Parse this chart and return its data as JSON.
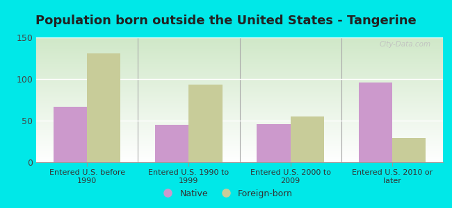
{
  "title": "Population born outside the United States - Tangerine",
  "categories": [
    "Entered U.S. before\n1990",
    "Entered U.S. 1990 to\n1999",
    "Entered U.S. 2000 to\n2009",
    "Entered U.S. 2010 or\nlater"
  ],
  "native_values": [
    67,
    45,
    46,
    96
  ],
  "foreign_values": [
    131,
    93,
    55,
    29
  ],
  "native_color": "#cc99cc",
  "foreign_color": "#c8cc99",
  "background_color": "#00e8e8",
  "plot_bg_top": "#d0e8c8",
  "plot_bg_bottom": "#ffffff",
  "ylim": [
    0,
    150
  ],
  "yticks": [
    0,
    50,
    100,
    150
  ],
  "legend_native": "Native",
  "legend_foreign": "Foreign-born",
  "watermark": "City-Data.com",
  "bar_width": 0.33,
  "title_fontsize": 13,
  "tick_fontsize": 8,
  "separator_color": "#aaaaaa"
}
